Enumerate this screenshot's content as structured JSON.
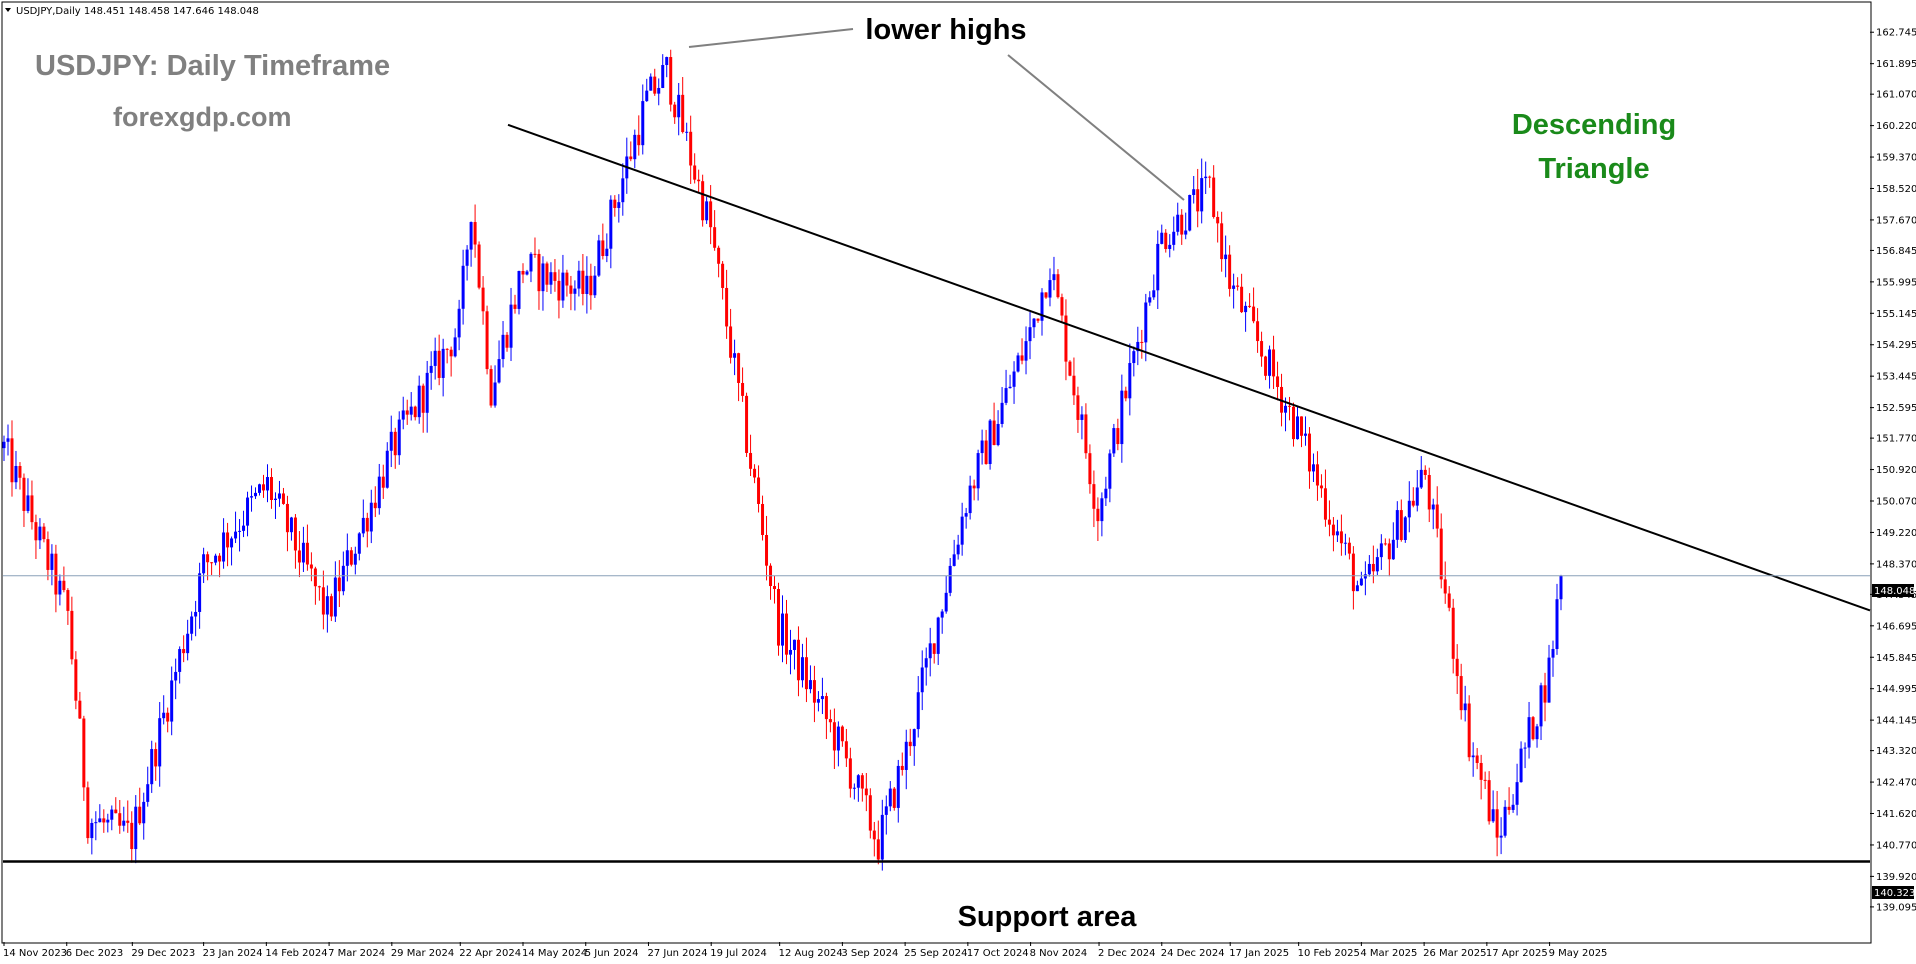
{
  "chart_data": {
    "type": "candlestick",
    "header": "USDJPY,Daily  148.451 148.458 147.646 148.048",
    "title": "USDJPY: Daily Timeframe",
    "subtitle": "forexgdp.com",
    "pattern_label_line1": "Descending",
    "pattern_label_line2": "Triangle",
    "annotation_highs": "lower highs",
    "annotation_support": "Support area",
    "current_price": 148.048,
    "current_price_label": "148.048",
    "support_price": 140.323,
    "support_price_label": "140.323",
    "ylim": [
      138.2,
      163.4
    ],
    "y_ticks": [
      "162.745",
      "161.895",
      "161.070",
      "160.220",
      "159.370",
      "158.520",
      "157.670",
      "156.845",
      "155.995",
      "155.145",
      "154.295",
      "153.445",
      "152.595",
      "151.770",
      "150.920",
      "150.070",
      "149.220",
      "148.370",
      "147.545",
      "146.695",
      "145.845",
      "144.995",
      "144.145",
      "143.320",
      "142.470",
      "141.620",
      "140.770",
      "139.920",
      "139.095"
    ],
    "x_ticks": [
      "14 Nov 2023",
      "6 Dec 2023",
      "29 Dec 2023",
      "23 Jan 2024",
      "14 Feb 2024",
      "7 Mar 2024",
      "29 Mar 2024",
      "22 Apr 2024",
      "14 May 2024",
      "5 Jun 2024",
      "27 Jun 2024",
      "19 Jul 2024",
      "12 Aug 2024",
      "3 Sep 2024",
      "25 Sep 2024",
      "17 Oct 2024",
      "8 Nov 2024",
      "2 Dec 2024",
      "24 Dec 2024",
      "17 Jan 2025",
      "10 Feb 2025",
      "4 Mar 2025",
      "26 Mar 2025",
      "17 Apr 2025",
      "9 May 2025"
    ],
    "trendline": {
      "start": [
        "14 Nov 2023",
        165.1
      ],
      "end": [
        "9 May 2025",
        150.2
      ]
    },
    "price_path": [
      [
        "14 Nov 2023",
        151.5
      ],
      [
        "6 Dec 2023",
        147.0
      ],
      [
        "14 Dec 2023",
        141.5
      ],
      [
        "29 Dec 2023",
        141.0
      ],
      [
        "23 Jan 2024",
        148.3
      ],
      [
        "14 Feb 2024",
        150.5
      ],
      [
        "7 Mar 2024",
        147.0
      ],
      [
        "29 Mar 2024",
        151.4
      ],
      [
        "22 Apr 2024",
        154.8
      ],
      [
        "26 Apr 2024",
        158.1
      ],
      [
        "3 May 2024",
        153.1
      ],
      [
        "14 May 2024",
        156.4
      ],
      [
        "5 Jun 2024",
        155.7
      ],
      [
        "27 Jun 2024",
        160.9
      ],
      [
        "3 Jul 2024",
        161.7
      ],
      [
        "19 Jul 2024",
        157.4
      ],
      [
        "12 Aug 2024",
        146.7
      ],
      [
        "3 Sep 2024",
        143.3
      ],
      [
        "16 Sep 2024",
        140.8
      ],
      [
        "25 Sep 2024",
        143.3
      ],
      [
        "17 Oct 2024",
        150.1
      ],
      [
        "8 Nov 2024",
        154.6
      ],
      [
        "15 Nov 2024",
        156.5
      ],
      [
        "2 Dec 2024",
        149.8
      ],
      [
        "24 Dec 2024",
        157.2
      ],
      [
        "10 Jan 2025",
        158.5
      ],
      [
        "17 Jan 2025",
        156.0
      ],
      [
        "10 Feb 2025",
        152.0
      ],
      [
        "4 Mar 2025",
        147.5
      ],
      [
        "26 Mar 2025",
        150.8
      ],
      [
        "11 Apr 2025",
        143.6
      ],
      [
        "17 Apr 2025",
        142.2
      ],
      [
        "21 Apr 2025",
        140.9
      ],
      [
        "9 May 2025",
        145.5
      ],
      [
        "13 May 2025",
        148.05
      ]
    ],
    "colors": {
      "bull": "#0000ff",
      "bear": "#ff0000",
      "trendline": "#000000",
      "support": "#000000",
      "current_line": "#8aa0b8",
      "title": "#808080",
      "pattern": "#1a8a1a",
      "leader": "#808080"
    }
  }
}
